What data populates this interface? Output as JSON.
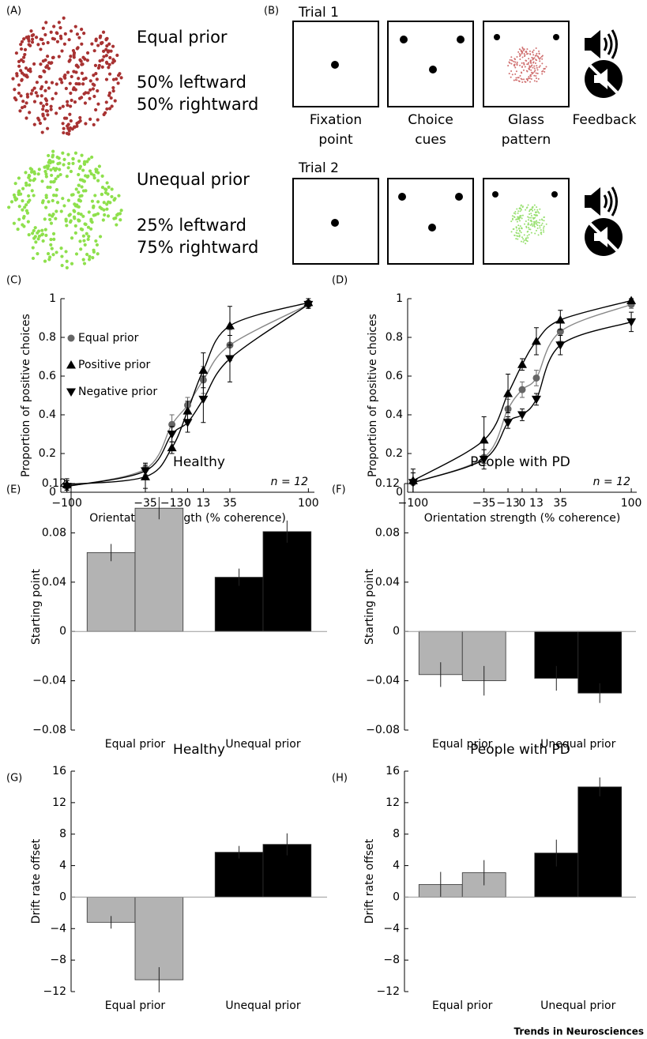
{
  "panel_a": {
    "label": "(A)",
    "conditions": [
      {
        "title": "Equal prior",
        "lines": [
          "50% leftward",
          "50% rightward"
        ]
      },
      {
        "title": "Unequal prior",
        "lines": [
          "25% leftward",
          "75% rightward"
        ]
      }
    ]
  },
  "panel_b": {
    "label": "(B)",
    "trials": [
      "Trial 1",
      "Trial 2"
    ],
    "steps": [
      [
        "Fixation",
        "point"
      ],
      [
        "Choice",
        "cues"
      ],
      [
        "Glass",
        "pattern"
      ],
      [
        "Feedback"
      ]
    ]
  },
  "chart_data": [
    {
      "type": "line",
      "label": "(C)",
      "ylabel": "Proportion of positive choices",
      "xlabel": "Orientation strength (% coherence)",
      "annotation": "n = 12",
      "legend": "upper left",
      "x": [
        -100,
        -35,
        -13,
        0,
        13,
        35,
        100
      ],
      "xlim": [
        -105,
        105
      ],
      "xticks": [
        {
          "value": -100,
          "label": "−100"
        },
        {
          "value": -35,
          "label": "−35"
        },
        {
          "value": -13,
          "label": "−13"
        },
        0,
        13,
        35,
        100
      ],
      "ylim": [
        0,
        1
      ],
      "yticks": [
        0,
        0.2,
        0.4,
        0.6,
        0.8,
        1
      ],
      "series": [
        {
          "name": "Equal prior",
          "color": "#666666",
          "marker": "circle",
          "values": [
            0.03,
            0.12,
            0.35,
            0.45,
            0.58,
            0.76,
            0.97
          ],
          "errors": [
            0.03,
            0.03,
            0.05,
            0.04,
            0.07,
            0.08,
            0.02
          ]
        },
        {
          "name": "Positive prior",
          "color": "#000000",
          "marker": "triangle-up",
          "values": [
            0.04,
            0.08,
            0.23,
            0.42,
            0.63,
            0.86,
            0.98
          ],
          "errors": [
            0.03,
            0.06,
            0.03,
            0.05,
            0.09,
            0.1,
            0.02
          ]
        },
        {
          "name": "Negative prior",
          "color": "#000000",
          "marker": "triangle-down",
          "values": [
            0.03,
            0.11,
            0.3,
            0.36,
            0.48,
            0.69,
            0.97
          ],
          "errors": [
            0.03,
            0.04,
            0.04,
            0.05,
            0.12,
            0.12,
            0.02
          ]
        }
      ]
    },
    {
      "type": "line",
      "label": "(D)",
      "ylabel": "Proportion of positive choices",
      "xlabel": "Orientation strength (% coherence)",
      "annotation": "n = 12",
      "x": [
        -100,
        -35,
        -13,
        0,
        13,
        35,
        100
      ],
      "xlim": [
        -105,
        105
      ],
      "xticks": [
        {
          "value": -100,
          "label": "−100"
        },
        {
          "value": -35,
          "label": "−35"
        },
        {
          "value": -13,
          "label": "−13"
        },
        0,
        13,
        35,
        100
      ],
      "ylim": [
        0,
        1
      ],
      "yticks": [
        0,
        0.2,
        0.4,
        0.6,
        0.8,
        1
      ],
      "series": [
        {
          "color": "#666666",
          "marker": "circle",
          "values": [
            0.05,
            0.18,
            0.43,
            0.53,
            0.59,
            0.83,
            0.97
          ],
          "errors": [
            0.05,
            0.04,
            0.05,
            0.04,
            0.04,
            0.05,
            0.02
          ]
        },
        {
          "color": "#000000",
          "marker": "triangle-up",
          "values": [
            0.06,
            0.27,
            0.51,
            0.66,
            0.78,
            0.89,
            0.99
          ],
          "errors": [
            0.06,
            0.12,
            0.1,
            0.03,
            0.07,
            0.05,
            0.01
          ]
        },
        {
          "color": "#000000",
          "marker": "triangle-down",
          "values": [
            0.05,
            0.17,
            0.36,
            0.4,
            0.48,
            0.76,
            0.88
          ],
          "errors": [
            0.05,
            0.05,
            0.03,
            0.03,
            0.03,
            0.05,
            0.05
          ]
        }
      ]
    },
    {
      "type": "bar",
      "label": "(E)",
      "title": "Healthy",
      "ylabel": "Starting point",
      "categories": [
        "Equal prior",
        "Unequal prior"
      ],
      "colors": [
        "#b3b3b3",
        "#000000"
      ],
      "ylim": [
        -0.08,
        0.12
      ],
      "yticks": [
        {
          "value": -0.08,
          "label": "−0.08"
        },
        {
          "value": -0.04,
          "label": "−0.04"
        },
        0,
        0.04,
        0.08,
        0.12
      ],
      "series": [
        {
          "values": [
            0.064,
            0.044
          ],
          "errors": [
            0.007,
            0.007
          ]
        },
        {
          "values": [
            0.1,
            0.081
          ],
          "errors": [
            0.009,
            0.009
          ]
        }
      ]
    },
    {
      "type": "bar",
      "label": "(F)",
      "title": "People with PD",
      "ylabel": "Starting point",
      "categories": [
        "Equal prior",
        "Unequal prior"
      ],
      "colors": [
        "#b3b3b3",
        "#000000"
      ],
      "ylim": [
        -0.08,
        0.12
      ],
      "yticks": [
        {
          "value": -0.08,
          "label": "−0.08"
        },
        {
          "value": -0.04,
          "label": "−0.04"
        },
        0,
        0.04,
        0.08,
        0.12
      ],
      "series": [
        {
          "values": [
            -0.035,
            -0.038
          ],
          "errors": [
            0.01,
            0.01
          ]
        },
        {
          "values": [
            -0.04,
            -0.05
          ],
          "errors": [
            0.012,
            0.008
          ]
        }
      ]
    },
    {
      "type": "bar",
      "label": "(G)",
      "title": "Healthy",
      "ylabel": "Drift rate offset",
      "categories": [
        "Equal prior",
        "Unequal prior"
      ],
      "colors": [
        "#b3b3b3",
        "#000000"
      ],
      "ylim": [
        -12,
        16
      ],
      "yticks": [
        {
          "value": -12,
          "label": "−12"
        },
        {
          "value": -8,
          "label": "−8"
        },
        {
          "value": -4,
          "label": "−4"
        },
        0,
        4,
        8,
        12,
        16
      ],
      "series": [
        {
          "values": [
            -3.2,
            5.7
          ],
          "errors": [
            0.8,
            0.8
          ]
        },
        {
          "values": [
            -10.5,
            6.7
          ],
          "errors": [
            1.6,
            1.4
          ]
        }
      ]
    },
    {
      "type": "bar",
      "label": "(H)",
      "title": "People with PD",
      "ylabel": "Drift rate offset",
      "categories": [
        "Equal prior",
        "Unequal prior"
      ],
      "colors": [
        "#b3b3b3",
        "#000000"
      ],
      "ylim": [
        -12,
        16
      ],
      "yticks": [
        {
          "value": -12,
          "label": "−12"
        },
        {
          "value": -8,
          "label": "−8"
        },
        {
          "value": -4,
          "label": "−4"
        },
        0,
        4,
        8,
        12,
        16
      ],
      "series": [
        {
          "values": [
            1.6,
            5.6
          ],
          "errors": [
            1.6,
            1.7
          ]
        },
        {
          "values": [
            3.1,
            14
          ],
          "errors": [
            1.6,
            1.2
          ]
        }
      ]
    }
  ],
  "footer": "Trends in Neurosciences"
}
